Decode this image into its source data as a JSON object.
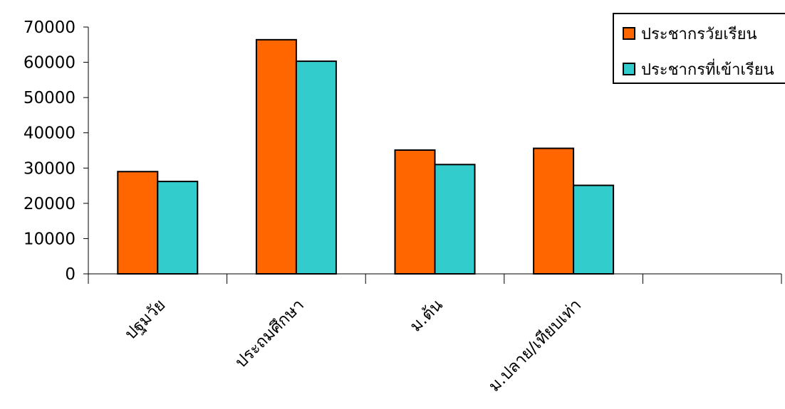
{
  "chart_data": {
    "type": "bar",
    "categories": [
      "ปฐมวัย",
      "ประถมศึกษา",
      "ม.ต้น",
      "ม.ปลาย/เทียบเท่า",
      ""
    ],
    "series": [
      {
        "name": "ประชากรวัยเรียน",
        "color": "#ff6600",
        "values": [
          29000,
          66400,
          35100,
          35600,
          null
        ]
      },
      {
        "name": "ประชากรที่เข้าเรียน",
        "color": "#33cccc",
        "values": [
          26200,
          60300,
          31000,
          25100,
          null
        ]
      }
    ],
    "ylim": [
      0,
      70000
    ],
    "yticks": [
      "0",
      "10000",
      "20000",
      "30000",
      "40000",
      "50000",
      "60000",
      "70000"
    ],
    "legend_position": "top-right",
    "grid": false
  }
}
